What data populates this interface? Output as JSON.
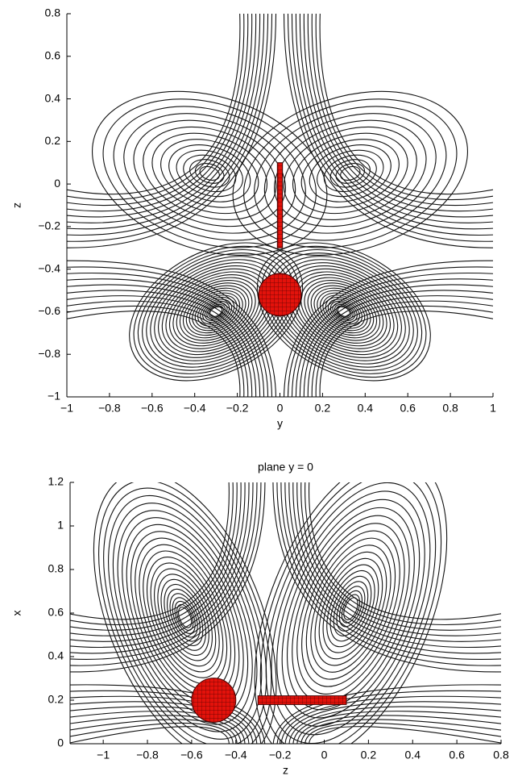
{
  "chart_data": [
    {
      "type": "streamline",
      "xlabel": "y",
      "ylabel": "z",
      "xlim": [
        -1,
        1
      ],
      "ylim": [
        -1,
        0.8
      ],
      "xticks": [
        {
          "value": -1,
          "label": "−1"
        },
        {
          "value": -0.8,
          "label": "−0.8"
        },
        {
          "value": -0.6,
          "label": "−0.6"
        },
        {
          "value": -0.4,
          "label": "−0.4"
        },
        {
          "value": -0.2,
          "label": "−0.2"
        },
        0,
        0.2,
        0.4,
        0.6,
        0.8,
        1
      ],
      "yticks": [
        {
          "value": -1,
          "label": "−1"
        },
        {
          "value": -0.8,
          "label": "−0.8"
        },
        {
          "value": -0.6,
          "label": "−0.6"
        },
        {
          "value": -0.4,
          "label": "−0.4"
        },
        {
          "value": -0.2,
          "label": "−0.2"
        },
        0,
        0.2,
        0.4,
        0.6,
        0.8
      ]
    },
    {
      "type": "streamline",
      "title": "plane y = 0",
      "xlabel": "z",
      "ylabel": "x",
      "xlim": [
        -1.15,
        0.8
      ],
      "ylim": [
        0,
        1.2
      ],
      "xticks": [
        {
          "value": -1,
          "label": "−1"
        },
        {
          "value": -0.8,
          "label": "−0.8"
        },
        {
          "value": -0.6,
          "label": "−0.6"
        },
        {
          "value": -0.4,
          "label": "−0.4"
        },
        {
          "value": -0.2,
          "label": "−0.2"
        },
        0,
        0.2,
        0.4,
        0.6,
        0.8
      ],
      "yticks": [
        0,
        0.2,
        0.4,
        0.6,
        0.8,
        1,
        1.2
      ]
    }
  ]
}
